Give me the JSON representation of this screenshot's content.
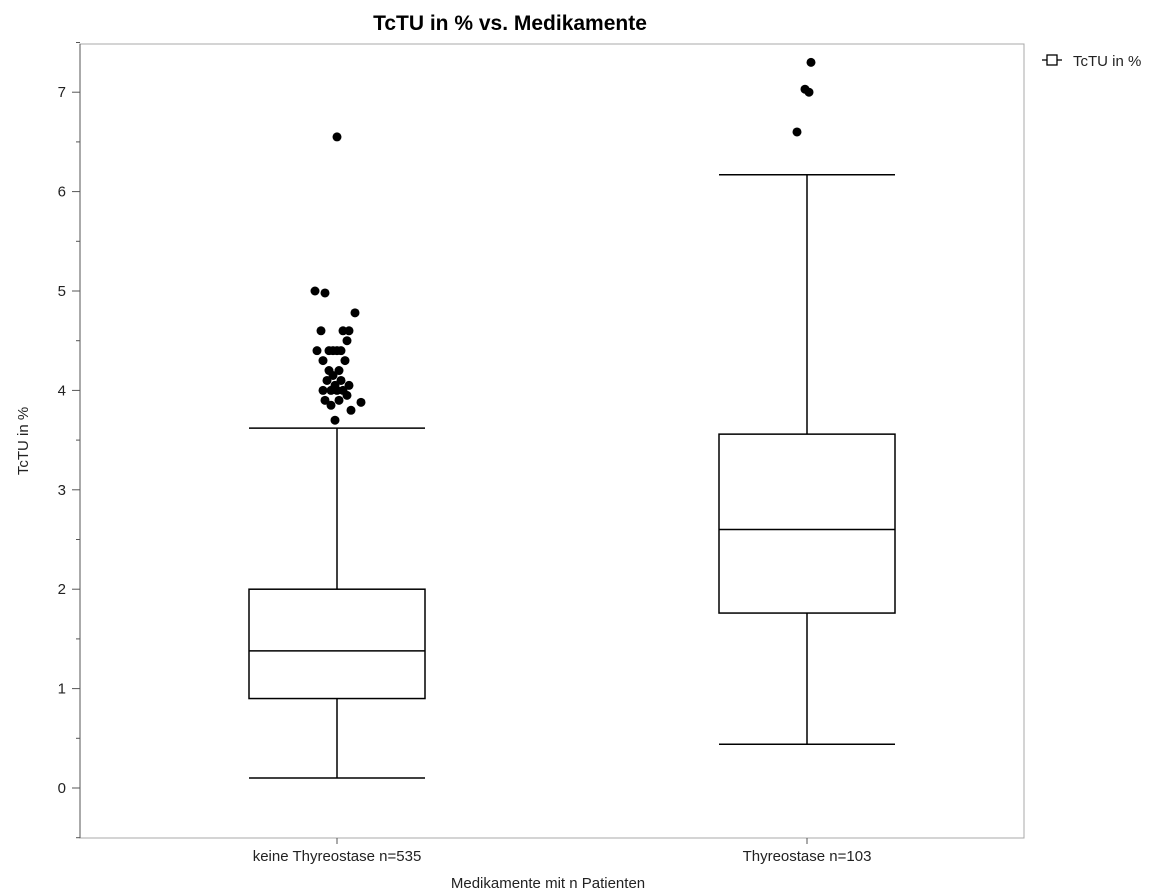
{
  "chart_data": {
    "type": "box",
    "title": "TcTU in % vs. Medikamente",
    "xlabel": "Medikamente mit n Patienten",
    "ylabel": "TcTU in %",
    "ylim": [
      -0.5,
      7.5
    ],
    "yticks": [
      "0",
      "1",
      "2",
      "3",
      "4",
      "5",
      "6",
      "7"
    ],
    "grid": false,
    "legend": {
      "position": "top-right",
      "entries": [
        "TcTU in %"
      ]
    },
    "categories": [
      "keine Thyreostase n=535",
      "Thyreostase n=103"
    ],
    "boxes": [
      {
        "category": "keine Thyreostase n=535",
        "whisker_low": 0.1,
        "q1": 0.9,
        "median": 1.38,
        "q3": 2.0,
        "whisker_high": 3.62,
        "outliers": [
          6.55,
          5.0,
          4.98,
          4.78,
          4.6,
          4.6,
          4.6,
          4.5,
          4.4,
          4.4,
          4.4,
          4.4,
          4.4,
          4.3,
          4.3,
          4.2,
          4.2,
          4.15,
          4.1,
          4.1,
          4.05,
          4.05,
          4.0,
          4.0,
          4.0,
          4.0,
          3.95,
          3.9,
          3.9,
          3.88,
          3.85,
          3.8,
          3.7
        ]
      },
      {
        "category": "Thyreostase n=103",
        "whisker_low": 0.44,
        "q1": 1.76,
        "median": 2.6,
        "q3": 3.56,
        "whisker_high": 6.17,
        "outliers": [
          7.3,
          7.03,
          7.0,
          6.6
        ]
      }
    ]
  }
}
